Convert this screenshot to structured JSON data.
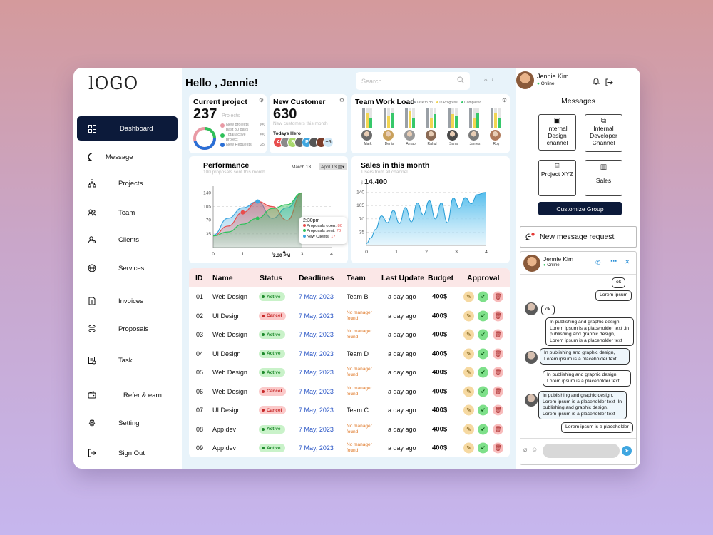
{
  "sidebar": {
    "logo": "lOGO",
    "items": [
      {
        "label": "Dashboard",
        "icon": "grid-icon"
      },
      {
        "label": "Message",
        "icon": "chat-icon"
      },
      {
        "label": "Projects",
        "icon": "projects-icon"
      },
      {
        "label": "Team",
        "icon": "team-icon"
      },
      {
        "label": "Clients",
        "icon": "clients-icon"
      },
      {
        "label": "Services",
        "icon": "globe-icon"
      },
      {
        "label": "Invoices",
        "icon": "invoice-icon"
      },
      {
        "label": "Proposals",
        "icon": "command-icon"
      },
      {
        "label": "Task",
        "icon": "task-icon"
      },
      {
        "label": "Refer & earn",
        "icon": "wallet-icon"
      },
      {
        "label": "Setting",
        "icon": "gear-icon"
      },
      {
        "label": "Sign Out",
        "icon": "signout-icon"
      }
    ]
  },
  "header": {
    "greeting": "Hello , Jennie!",
    "search_placeholder": "Search"
  },
  "user": {
    "name": "Jennie Kim",
    "status": "Online"
  },
  "current_project": {
    "title": "Current project",
    "value": "237",
    "unit": "Projects",
    "legend": [
      {
        "label": "New projects past 30 days",
        "value": "85",
        "color": "#e99aa5"
      },
      {
        "label": "Total active project",
        "value": "55",
        "color": "#2fc15a"
      },
      {
        "label": "New Requests",
        "value": "25",
        "color": "#2a6fd6"
      }
    ]
  },
  "new_customer": {
    "title": "New Customer",
    "value": "630",
    "subtitle": "New customers this month",
    "hero_label": "Todays Hero",
    "hero_initials": [
      "A",
      "",
      "S",
      "",
      "P",
      "",
      "",
      "+5"
    ],
    "hero_colors": [
      "#e84d4d",
      "#8a8a8a",
      "#a8d96a",
      "#6b6b6b",
      "#3fa6e0",
      "#555",
      "#7a3d2a",
      "#cfe6f5"
    ]
  },
  "workload": {
    "title": "Team Work Load",
    "legend": [
      {
        "label": "Task to do",
        "color": "#9aa0a6"
      },
      {
        "label": "In Progress",
        "color": "#f2d552"
      },
      {
        "label": "Completed",
        "color": "#37c86b"
      }
    ],
    "members": [
      {
        "name": "Mark",
        "todo": 1.0,
        "progress": 0.75,
        "done": 0.55
      },
      {
        "name": "Denis",
        "todo": 1.0,
        "progress": 0.6,
        "done": 0.8
      },
      {
        "name": "Arnab",
        "todo": 1.0,
        "progress": 0.85,
        "done": 0.5
      },
      {
        "name": "Rahul",
        "todo": 1.0,
        "progress": 0.5,
        "done": 0.7
      },
      {
        "name": "Sana",
        "todo": 1.0,
        "progress": 0.7,
        "done": 0.6
      },
      {
        "name": "James",
        "todo": 1.0,
        "progress": 0.55,
        "done": 0.75
      },
      {
        "name": "Roy",
        "todo": 1.0,
        "progress": 0.8,
        "done": 0.5
      }
    ]
  },
  "performance": {
    "title": "Performance",
    "subtitle": "100 proposals sent this month",
    "date_from": "March  13",
    "date_to": "April 13",
    "tooltip": {
      "time": "2:30pm",
      "lines": [
        {
          "label": "Proposals open:",
          "value": "80",
          "color": "#e84d4d"
        },
        {
          "label": "Proposals sent:",
          "value": "70",
          "color": "#2fc15a"
        },
        {
          "label": "New Clients:",
          "value": "17",
          "color": "#3fa6e0"
        }
      ]
    },
    "marker_label": "2.30 PM"
  },
  "chart_data": [
    {
      "type": "area",
      "title": "Performance",
      "x": [
        0,
        0.5,
        1,
        1.5,
        2,
        2.5,
        3
      ],
      "xticks": [
        "0",
        "1",
        "2",
        "3",
        "4"
      ],
      "yticks": [
        "35",
        "70",
        "105",
        "140"
      ],
      "ylim": [
        0,
        150
      ],
      "xlim": [
        0,
        4
      ],
      "series": [
        {
          "color": "#3fa6e0",
          "values": [
            32,
            75,
            102,
            118,
            75,
            102,
            140
          ]
        },
        {
          "color": "#e84d4d",
          "values": [
            30,
            55,
            90,
            118,
            105,
            70,
            140
          ]
        },
        {
          "color": "#2fc15a",
          "values": [
            30,
            40,
            60,
            75,
            100,
            110,
            140
          ]
        }
      ]
    },
    {
      "type": "area",
      "title": "Sales in this month",
      "subtitle": "Users from all channel",
      "value": "14,400",
      "xticks": [
        "0",
        "1",
        "2",
        "3",
        "4"
      ],
      "yticks": [
        "35",
        "70",
        "105",
        "140"
      ],
      "ylim": [
        0,
        160
      ],
      "xlim": [
        0,
        4
      ],
      "x": [
        0,
        0.15,
        0.3,
        0.5,
        0.7,
        0.9,
        1.1,
        1.3,
        1.5,
        1.7,
        1.9,
        2.1,
        2.3,
        2.5,
        2.7,
        2.9,
        3.1,
        3.3,
        3.5,
        3.7,
        4.0
      ],
      "values": [
        5,
        20,
        42,
        78,
        60,
        92,
        58,
        100,
        62,
        112,
        80,
        118,
        70,
        112,
        60,
        125,
        98,
        126,
        110,
        134,
        140
      ]
    }
  ],
  "table": {
    "headers": [
      "ID",
      "Name",
      "Status",
      "Deadlines",
      "Team",
      "Last Update",
      "Budget",
      "Approval"
    ],
    "rows": [
      {
        "id": "01",
        "name": "Web Design",
        "status": "Active",
        "deadline": "7 May, 2023",
        "team": "Team B",
        "update": "a day ago",
        "budget": "400$"
      },
      {
        "id": "02",
        "name": "UI Design",
        "status": "Cancel",
        "deadline": "7 May, 2023",
        "team": "No manager found",
        "update": "a day ago",
        "budget": "400$"
      },
      {
        "id": "03",
        "name": "Web Design",
        "status": "Active",
        "deadline": "7 May, 2023",
        "team": "No manager found",
        "update": "a day ago",
        "budget": "400$"
      },
      {
        "id": "04",
        "name": "UI Design",
        "status": "Active",
        "deadline": "7 May, 2023",
        "team": "Team D",
        "update": "a day ago",
        "budget": "400$"
      },
      {
        "id": "05",
        "name": "Web Design",
        "status": "Active",
        "deadline": "7 May, 2023",
        "team": "No manager found",
        "update": "a day ago",
        "budget": "400$"
      },
      {
        "id": "06",
        "name": "Web Design",
        "status": "Cancel",
        "deadline": "7 May, 2023",
        "team": "No manager found",
        "update": "a day ago",
        "budget": "400$"
      },
      {
        "id": "07",
        "name": "UI Design",
        "status": "Cancel",
        "deadline": "7 May, 2023",
        "team": "Team C",
        "update": "a day ago",
        "budget": "400$"
      },
      {
        "id": "08",
        "name": "App dev",
        "status": "Active",
        "deadline": "7 May, 2023",
        "team": "No manager found",
        "update": "a day ago",
        "budget": "400$"
      },
      {
        "id": "09",
        "name": "App dev",
        "status": "Active",
        "deadline": "7 May, 2023",
        "team": "No manager found",
        "update": "a day ago",
        "budget": "400$"
      }
    ]
  },
  "messages": {
    "title": "Messages",
    "groups": [
      {
        "label": "Internal Design channel",
        "icon": "design-icon"
      },
      {
        "label": "Internal Developer Channel",
        "icon": "developer-icon"
      },
      {
        "label": "Project XYZ",
        "icon": "projector-icon"
      },
      {
        "label": "Sales",
        "icon": "sales-icon"
      }
    ],
    "customize_label": "Customize Group",
    "new_request_label": "New message request"
  },
  "chat": {
    "name": "Jennie Kim",
    "status": "Online",
    "messages": [
      {
        "side": "right",
        "text": "ok"
      },
      {
        "side": "right",
        "text": "Lorem ipsum"
      },
      {
        "side": "left",
        "text": "ok"
      },
      {
        "side": "right",
        "text": "In publishing and graphic design, Lorem ipsum is a placeholder text .In publishing and graphic design, Lorem ipsum is a placeholder text"
      },
      {
        "side": "left",
        "text": "In publishing and graphic design, Lorem ipsum is a placeholder text"
      },
      {
        "side": "right",
        "text": "In publishing and graphic design, Lorem ipsum is a placeholder text"
      },
      {
        "side": "left",
        "text": "In publishing and graphic design, Lorem ipsum is a placeholder text .In publishing and graphic design, Lorem ipsum is a placeholder text"
      },
      {
        "side": "right",
        "text": "Lorem ipsum is a placeholder"
      }
    ]
  }
}
